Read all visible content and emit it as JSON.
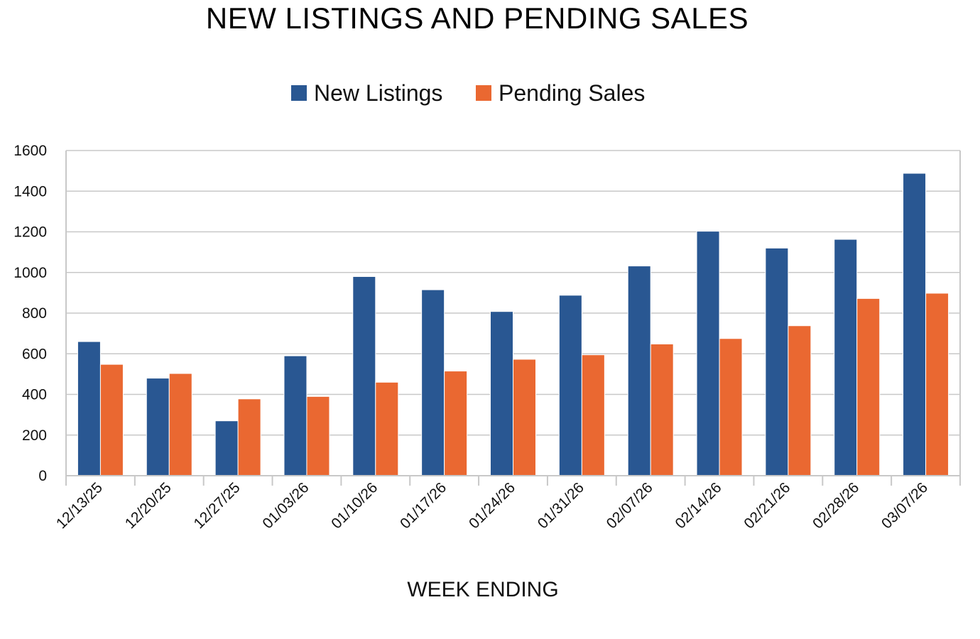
{
  "chart_data": {
    "type": "bar",
    "title": "NEW LISTINGS AND PENDING SALES",
    "xlabel": "WEEK ENDING",
    "ylabel": "",
    "ylim": [
      0,
      1600
    ],
    "yticks": [
      0,
      200,
      400,
      600,
      800,
      1000,
      1200,
      1400,
      1600
    ],
    "grid": true,
    "legend_position": "top-center",
    "categories": [
      "12/13/25",
      "12/20/25",
      "12/27/25",
      "01/03/26",
      "01/10/26",
      "01/17/26",
      "01/24/26",
      "01/31/26",
      "02/07/26",
      "02/14/26",
      "02/21/26",
      "02/28/26",
      "03/07/26"
    ],
    "series": [
      {
        "name": "New Listings",
        "color": "#295792",
        "values": [
          660,
          480,
          270,
          590,
          980,
          915,
          808,
          888,
          1032,
          1203,
          1120,
          1163,
          1488
        ]
      },
      {
        "name": "Pending Sales",
        "color": "#EA6831",
        "values": [
          548,
          503,
          378,
          390,
          460,
          515,
          573,
          595,
          648,
          675,
          738,
          872,
          898
        ]
      }
    ]
  }
}
